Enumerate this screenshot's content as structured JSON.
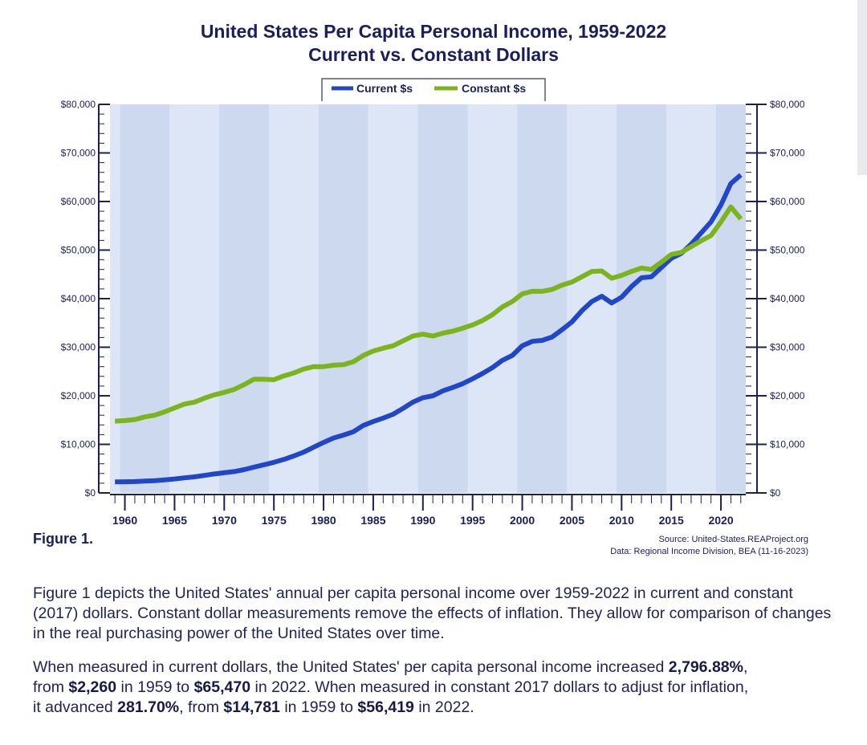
{
  "chart_data": {
    "type": "line",
    "title": "United States Per Capita Personal Income, 1959-2022",
    "subtitle": "Current vs. Constant Dollars",
    "xlabel": "",
    "ylabel": "",
    "x_range": [
      1959,
      2022
    ],
    "ylim": [
      0,
      80000
    ],
    "y_ticks": [
      "$0",
      "$10,000",
      "$20,000",
      "$30,000",
      "$40,000",
      "$50,000",
      "$60,000",
      "$70,000",
      "$80,000"
    ],
    "y_tick_values": [
      0,
      10000,
      20000,
      30000,
      40000,
      50000,
      60000,
      70000,
      80000
    ],
    "x_ticks": [
      "1960",
      "1965",
      "1970",
      "1975",
      "1980",
      "1985",
      "1990",
      "1995",
      "2000",
      "2005",
      "2010",
      "2015",
      "2020"
    ],
    "x_tick_values": [
      1960,
      1965,
      1970,
      1975,
      1980,
      1985,
      1990,
      1995,
      2000,
      2005,
      2010,
      2015,
      2020
    ],
    "legend_position": "top",
    "grid": false,
    "x": [
      1959,
      1960,
      1961,
      1962,
      1963,
      1964,
      1965,
      1966,
      1967,
      1968,
      1969,
      1970,
      1971,
      1972,
      1973,
      1974,
      1975,
      1976,
      1977,
      1978,
      1979,
      1980,
      1981,
      1982,
      1983,
      1984,
      1985,
      1986,
      1987,
      1988,
      1989,
      1990,
      1991,
      1992,
      1993,
      1994,
      1995,
      1996,
      1997,
      1998,
      1999,
      2000,
      2001,
      2002,
      2003,
      2004,
      2005,
      2006,
      2007,
      2008,
      2009,
      2010,
      2011,
      2012,
      2013,
      2014,
      2015,
      2016,
      2017,
      2018,
      2019,
      2020,
      2021,
      2022
    ],
    "series": [
      {
        "name": "Current $s",
        "color": "#2147c6",
        "values": [
          2260,
          2290,
          2330,
          2450,
          2530,
          2700,
          2880,
          3100,
          3300,
          3600,
          3900,
          4150,
          4400,
          4800,
          5300,
          5800,
          6300,
          6900,
          7600,
          8400,
          9400,
          10400,
          11300,
          11900,
          12600,
          13900,
          14700,
          15400,
          16200,
          17400,
          18700,
          19600,
          20000,
          21000,
          21700,
          22500,
          23500,
          24600,
          25800,
          27300,
          28300,
          30300,
          31200,
          31400,
          32100,
          33600,
          35200,
          37500,
          39400,
          40500,
          39100,
          40300,
          42500,
          44300,
          44500,
          46400,
          48300,
          49300,
          51200,
          53500,
          55800,
          59300,
          63700,
          65470
        ]
      },
      {
        "name": "Constant $s",
        "color": "#7cb41e",
        "values": [
          14781,
          14900,
          15100,
          15650,
          16000,
          16700,
          17500,
          18300,
          18700,
          19500,
          20200,
          20700,
          21300,
          22300,
          23400,
          23400,
          23300,
          24100,
          24700,
          25500,
          26000,
          26000,
          26300,
          26400,
          27000,
          28300,
          29200,
          29800,
          30300,
          31300,
          32300,
          32700,
          32300,
          32900,
          33300,
          33900,
          34600,
          35500,
          36700,
          38300,
          39400,
          41000,
          41500,
          41500,
          41900,
          42800,
          43400,
          44500,
          45600,
          45700,
          44200,
          44800,
          45600,
          46300,
          46000,
          47500,
          49100,
          49500,
          50700,
          51900,
          53000,
          55800,
          58900,
          56419
        ]
      }
    ]
  },
  "page": {
    "title_line1": "United States Per Capita Personal Income, 1959-2022",
    "title_line2": "Current vs. Constant Dollars",
    "legend_current": "Current $s",
    "legend_constant": "Constant $s",
    "figure_label": "Figure 1.",
    "source_line": "Source: United-States.REAProject.org",
    "data_line": "Data: Regional Income Division, BEA (11-16-2023)"
  },
  "description": {
    "p1": "Figure 1 depicts the United States' annual per capita personal income over 1959-2022 in current and constant (2017) dollars. Constant dollar measurements remove the effects of inflation. They allow for comparison of changes in the real purchasing power of the United States over time.",
    "p2_a": "When measured in current dollars, the United States' per capita personal income increased ",
    "p2_b": "2,796.88%",
    "p2_c": ",",
    "p2_d": "from ",
    "p2_e": "$2,260",
    "p2_f": " in 1959 to ",
    "p2_g": "$65,470",
    "p2_h": " in 2022. When measured in constant 2017 dollars to adjust for inflation,",
    "p2_i": "it advanced ",
    "p2_j": "281.70%",
    "p2_k": ", from ",
    "p2_l": "$14,781",
    "p2_m": " in 1959 to ",
    "p2_n": "$56,419",
    "p2_o": " in 2022."
  },
  "colors": {
    "title": "#1a1f5c",
    "plot_band_dark": "#cdd9ef",
    "plot_band_light": "#dde6f6",
    "axis": "#1a1f5c"
  }
}
